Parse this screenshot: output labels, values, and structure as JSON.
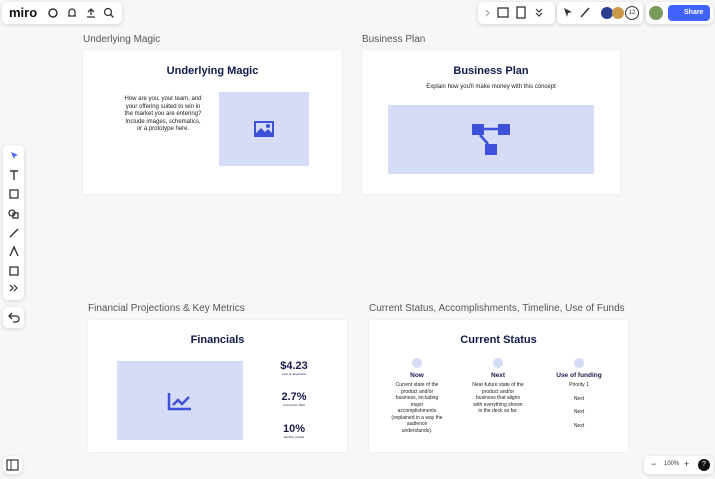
{
  "toolbar": {
    "logo": "miro",
    "share": "Share",
    "collaborators": "12",
    "zoom": "100%"
  },
  "frames": [
    {
      "label": "Underlying Magic",
      "title": "Underlying Magic",
      "body": "How are you, your team, and your offering suited to win in the market you are entering? Include images, schematics, or a prototype here."
    },
    {
      "label": "Business Plan",
      "title": "Business Plan",
      "body": "Explain how you'll make money with this concept"
    },
    {
      "label": "Financial Projections & Key Metrics",
      "title": "Financials",
      "metrics": [
        {
          "value": "$4.23",
          "caption": "Cost of acquisition"
        },
        {
          "value": "2.7%",
          "caption": "Conversion Rate"
        },
        {
          "value": "10%",
          "caption": "Monthly growth"
        }
      ]
    },
    {
      "label": "Current Status, Accomplishments, Timeline, Use of Funds",
      "title": "Current Status",
      "columns": [
        {
          "heading": "Now",
          "text": "Current state of the product and/or business, including major accomplishments (explained in a way the audience understands)."
        },
        {
          "heading": "Next",
          "text": "Near-future state of the product and/or business that aligns with everything shown in the deck so far."
        },
        {
          "heading": "Use of funding",
          "items": [
            "Priority 1",
            "Next",
            "Next",
            "Next"
          ]
        }
      ]
    }
  ]
}
